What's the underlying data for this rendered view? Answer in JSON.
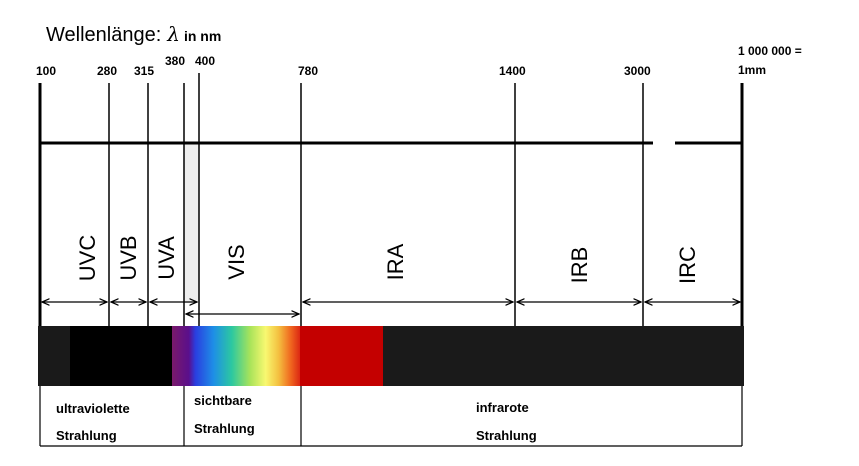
{
  "heading": {
    "text": "Wellenlänge:",
    "symbol": "λ",
    "unit": "in nm"
  },
  "ticks": [
    {
      "value": "100",
      "key": "t100"
    },
    {
      "value": "280",
      "key": "t280"
    },
    {
      "value": "315",
      "key": "t315"
    },
    {
      "value": "380",
      "key": "t380"
    },
    {
      "value": "400",
      "key": "t400"
    },
    {
      "value": "780",
      "key": "t780"
    },
    {
      "value": "1400",
      "key": "t1400"
    },
    {
      "value": "3000",
      "key": "t3000"
    },
    {
      "value_line1": "1 000 000 =",
      "value_line2": "1mm",
      "key": "t1mm"
    }
  ],
  "bands": [
    {
      "label": "UVC",
      "from": "100",
      "to": "280"
    },
    {
      "label": "UVB",
      "from": "280",
      "to": "315"
    },
    {
      "label": "UVA",
      "from": "315",
      "to": "380"
    },
    {
      "label": "VIS",
      "from": "400",
      "to": "780"
    },
    {
      "label": "IRA",
      "from": "780",
      "to": "1400"
    },
    {
      "label": "IRB",
      "from": "1400",
      "to": "3000"
    },
    {
      "label": "IRC",
      "from": "3000",
      "to": "1 000 000"
    }
  ],
  "captions": [
    {
      "line1": "ultraviolette",
      "line2": "Strahlung"
    },
    {
      "line1": "sichtbare",
      "line2": "Strahlung"
    },
    {
      "line1": "infrarote",
      "line2": "Strahlung"
    }
  ],
  "colors": {
    "line": "#000000",
    "spectrum_background": "#1a1a1a",
    "uv_black": "#000000",
    "ir_red": "#c40000"
  }
}
